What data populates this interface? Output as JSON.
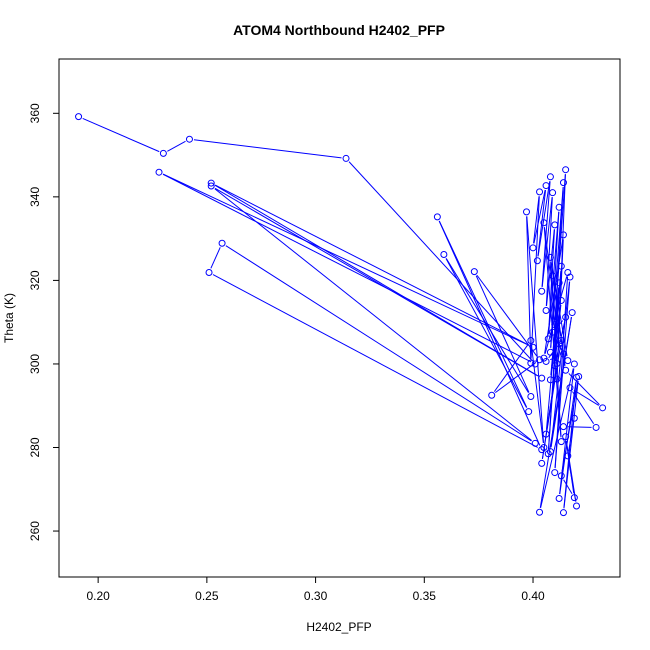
{
  "chart_data": {
    "type": "line",
    "title": "ATOM4 Northbound H2402_PFP",
    "xlabel": "H2402_PFP",
    "ylabel": "Theta (K)",
    "xlim": [
      0.182,
      0.44
    ],
    "ylim": [
      249,
      373
    ],
    "xticks": [
      0.2,
      0.25,
      0.3,
      0.35,
      0.4
    ],
    "xtick_labels": [
      "0.20",
      "0.25",
      "0.30",
      "0.35",
      "0.40"
    ],
    "yticks": [
      260,
      280,
      300,
      320,
      340,
      360
    ],
    "ytick_labels": [
      "260",
      "280",
      "300",
      "320",
      "340",
      "360"
    ],
    "grid": false,
    "series": [
      {
        "color": "#0000ff",
        "marker": "open-circle",
        "points": [
          [
            0.191,
            359.2
          ],
          [
            0.23,
            350.4
          ],
          [
            0.242,
            353.8
          ],
          [
            0.314,
            349.2
          ],
          [
            0.401,
            300.0
          ],
          [
            0.228,
            345.9
          ],
          [
            0.4,
            304.0
          ],
          [
            0.252,
            343.3
          ],
          [
            0.404,
            296.6
          ],
          [
            0.252,
            342.6
          ],
          [
            0.401,
            281.0
          ],
          [
            0.257,
            328.9
          ],
          [
            0.251,
            321.9
          ],
          [
            0.404,
            279.5
          ],
          [
            0.356,
            335.2
          ],
          [
            0.398,
            288.6
          ],
          [
            0.359,
            326.2
          ],
          [
            0.399,
            292.2
          ],
          [
            0.373,
            322.1
          ],
          [
            0.403,
            301.0
          ],
          [
            0.381,
            292.5
          ],
          [
            0.399,
            305.6
          ],
          [
            0.405,
            280.0
          ],
          [
            0.397,
            336.4
          ],
          [
            0.399,
            300.2
          ],
          [
            0.403,
            341.2
          ],
          [
            0.4,
            327.8
          ],
          [
            0.406,
            342.7
          ],
          [
            0.402,
            324.7
          ],
          [
            0.408,
            344.8
          ],
          [
            0.404,
            317.4
          ],
          [
            0.409,
            341.0
          ],
          [
            0.406,
            312.8
          ],
          [
            0.41,
            333.3
          ],
          [
            0.407,
            306.0
          ],
          [
            0.412,
            337.5
          ],
          [
            0.408,
            302.8
          ],
          [
            0.414,
            343.4
          ],
          [
            0.41,
            309.4
          ],
          [
            0.415,
            346.5
          ],
          [
            0.411,
            296.4
          ],
          [
            0.414,
            330.9
          ],
          [
            0.405,
            301.4
          ],
          [
            0.416,
            321.9
          ],
          [
            0.41,
            274.0
          ],
          [
            0.417,
            320.8
          ],
          [
            0.408,
            279.0
          ],
          [
            0.418,
            312.3
          ],
          [
            0.403,
            264.5
          ],
          [
            0.419,
            300.0
          ],
          [
            0.412,
            267.8
          ],
          [
            0.42,
            296.8
          ],
          [
            0.414,
            264.4
          ],
          [
            0.421,
            297.0
          ],
          [
            0.413,
            273.2
          ],
          [
            0.419,
            268.0
          ],
          [
            0.415,
            282.6
          ],
          [
            0.42,
            266.0
          ],
          [
            0.416,
            278.0
          ],
          [
            0.419,
            287.0
          ],
          [
            0.414,
            285.0
          ],
          [
            0.429,
            284.8
          ],
          [
            0.417,
            294.3
          ],
          [
            0.432,
            289.5
          ],
          [
            0.415,
            298.5
          ],
          [
            0.409,
            321.1
          ],
          [
            0.413,
            305.6
          ],
          [
            0.404,
            276.2
          ],
          [
            0.411,
            300.1
          ],
          [
            0.406,
            283.2
          ],
          [
            0.413,
            323.4
          ],
          [
            0.407,
            278.5
          ],
          [
            0.412,
            319.4
          ],
          [
            0.408,
            296.2
          ],
          [
            0.413,
            315.2
          ],
          [
            0.41,
            299.6
          ],
          [
            0.415,
            311.2
          ],
          [
            0.409,
            307.6
          ],
          [
            0.414,
            302.4
          ],
          [
            0.406,
            300.6
          ],
          [
            0.412,
            304.8
          ],
          [
            0.405,
            333.8
          ],
          [
            0.413,
            281.4
          ],
          [
            0.408,
            325.5
          ],
          [
            0.416,
            300.8
          ]
        ]
      }
    ]
  }
}
